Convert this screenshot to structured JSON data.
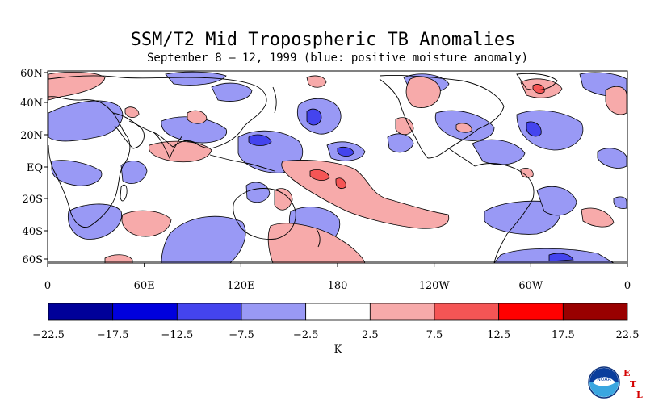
{
  "title": "SSM/T2 Mid Tropospheric TB Anomalies",
  "subtitle": "September 8 – 12, 1999 (blue: positive moisture anomaly)",
  "map": {
    "lat_labels": [
      "60N",
      "40N",
      "20N",
      "EQ",
      "20S",
      "40S",
      "60S"
    ],
    "lon_labels": [
      "0",
      "60E",
      "120E",
      "180",
      "120W",
      "60W",
      "0"
    ]
  },
  "colorbar": {
    "tick_labels": [
      "−22.5",
      "−17.5",
      "−12.5",
      "−7.5",
      "−2.5",
      "2.5",
      "7.5",
      "12.5",
      "17.5",
      "22.5"
    ],
    "unit": "K",
    "colors": [
      "#000099",
      "#0000dd",
      "#4444ee",
      "#9999f5",
      "#ffffff",
      "#f7aaaa",
      "#f55555",
      "#ff0000",
      "#990000"
    ]
  },
  "logo": {
    "text": "NOAA",
    "etl_letters": [
      "E",
      "T",
      "L"
    ]
  },
  "palette": {
    "land_outline": "#000000",
    "positive_moisture": "#9999f5",
    "strong_positive": "#4444ee",
    "negative_moisture": "#f7aaaa",
    "strong_negative": "#f55555"
  }
}
